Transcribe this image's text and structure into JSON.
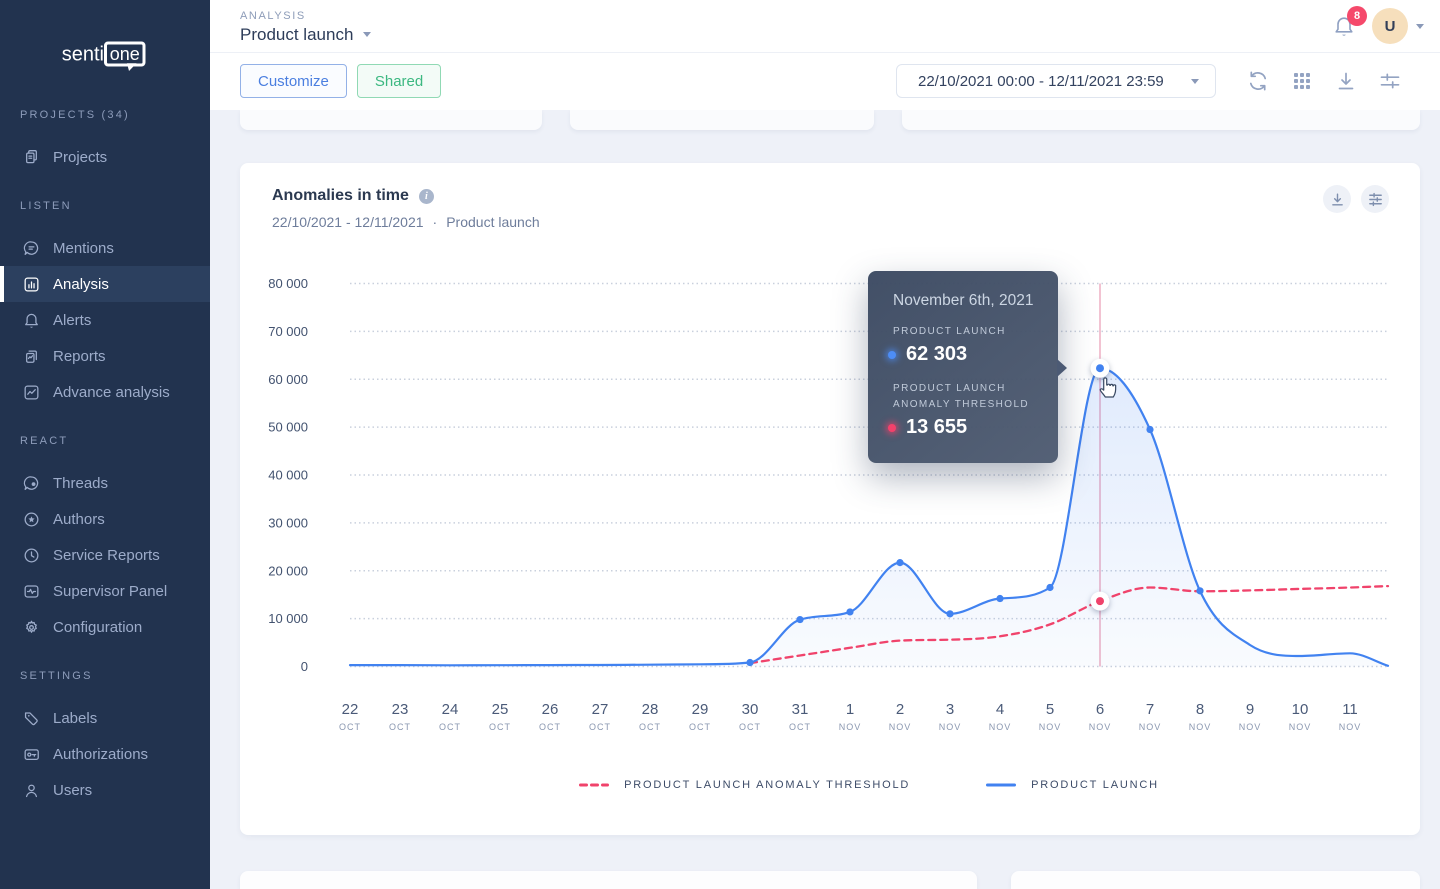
{
  "app": {
    "name": "sentione"
  },
  "sidebar": {
    "logo": {
      "text_plain": "senti",
      "text_boxed": "one"
    },
    "sections": [
      {
        "header": "PROJECTS (34)",
        "items": [
          {
            "icon": "projects",
            "label": "Projects",
            "active": false
          }
        ]
      },
      {
        "header": "LISTEN",
        "items": [
          {
            "icon": "mentions",
            "label": "Mentions",
            "active": false
          },
          {
            "icon": "analysis",
            "label": "Analysis",
            "active": true
          },
          {
            "icon": "alerts",
            "label": "Alerts",
            "active": false
          },
          {
            "icon": "reports",
            "label": "Reports",
            "active": false
          },
          {
            "icon": "advance-analysis",
            "label": "Advance analysis",
            "active": false
          }
        ]
      },
      {
        "header": "REACT",
        "items": [
          {
            "icon": "threads",
            "label": "Threads",
            "active": false
          },
          {
            "icon": "authors",
            "label": "Authors",
            "active": false
          },
          {
            "icon": "service-reports",
            "label": "Service Reports",
            "active": false
          },
          {
            "icon": "supervisor-panel",
            "label": "Supervisor Panel",
            "active": false
          },
          {
            "icon": "configuration",
            "label": "Configuration",
            "active": false
          }
        ]
      },
      {
        "header": "SETTINGS",
        "items": [
          {
            "icon": "labels",
            "label": "Labels",
            "active": false
          },
          {
            "icon": "authorizations",
            "label": "Authorizations",
            "active": false
          },
          {
            "icon": "users",
            "label": "Users",
            "active": false
          }
        ]
      }
    ]
  },
  "header": {
    "breadcrumb": "ANALYSIS",
    "title": "Product launch",
    "notifications_count": "8",
    "avatar_initial": "U"
  },
  "toolbar": {
    "customize_label": "Customize",
    "shared_label": "Shared",
    "date_range": "22/10/2021 00:00 - 12/11/2021 23:59"
  },
  "panel": {
    "title": "Anomalies in time",
    "subtitle_range": "22/10/2021 - 12/11/2021",
    "subtitle_separator": "·",
    "subtitle_project": "Product launch"
  },
  "tooltip": {
    "date": "November 6th, 2021",
    "series1_label": "PRODUCT LAUNCH",
    "series1_value": "62 303",
    "series2_label_line1": "PRODUCT LAUNCH",
    "series2_label_line2": "ANOMALY THRESHOLD",
    "series2_value": "13 655"
  },
  "legend": [
    {
      "label": "PRODUCT LAUNCH ANOMALY THRESHOLD",
      "style": "dashed",
      "color": "#f0436b"
    },
    {
      "label": "PRODUCT LAUNCH",
      "style": "solid",
      "color": "#4182f0"
    }
  ],
  "colors": {
    "sidebar_bg": "#22334f",
    "sidebar_active_bg": "#2c405f",
    "accent_blue": "#4182f0",
    "accent_red": "#f0436b",
    "accent_green": "#3cb881",
    "badge_red": "#f5496b",
    "grid_dot": "#c9d0dd",
    "hover_line": "#f2c3d2",
    "tooltip_bg": "#46556e"
  },
  "chart_data": {
    "type": "line",
    "title": "Anomalies in time",
    "ylim": [
      0,
      80000
    ],
    "y_ticks": [
      "0",
      "10 000",
      "20 000",
      "30 000",
      "40 000",
      "50 000",
      "60 000",
      "70 000",
      "80 000"
    ],
    "x_labels": [
      {
        "day": "22",
        "month": "OCT"
      },
      {
        "day": "23",
        "month": "OCT"
      },
      {
        "day": "24",
        "month": "OCT"
      },
      {
        "day": "25",
        "month": "OCT"
      },
      {
        "day": "26",
        "month": "OCT"
      },
      {
        "day": "27",
        "month": "OCT"
      },
      {
        "day": "28",
        "month": "OCT"
      },
      {
        "day": "29",
        "month": "OCT"
      },
      {
        "day": "30",
        "month": "OCT"
      },
      {
        "day": "31",
        "month": "OCT"
      },
      {
        "day": "1",
        "month": "NOV"
      },
      {
        "day": "2",
        "month": "NOV"
      },
      {
        "day": "3",
        "month": "NOV"
      },
      {
        "day": "4",
        "month": "NOV"
      },
      {
        "day": "5",
        "month": "NOV"
      },
      {
        "day": "6",
        "month": "NOV"
      },
      {
        "day": "7",
        "month": "NOV"
      },
      {
        "day": "8",
        "month": "NOV"
      },
      {
        "day": "9",
        "month": "NOV"
      },
      {
        "day": "10",
        "month": "NOV"
      },
      {
        "day": "11",
        "month": "NOV"
      }
    ],
    "series": [
      {
        "name": "PRODUCT LAUNCH",
        "color": "#4182f0",
        "style": "solid",
        "values": [
          300,
          300,
          260,
          280,
          300,
          320,
          380,
          450,
          830,
          9800,
          11400,
          21700,
          11000,
          14200,
          16500,
          62303,
          49500,
          15800,
          4500,
          2200,
          2750
        ],
        "trailing_value": 150
      },
      {
        "name": "PRODUCT LAUNCH ANOMALY THRESHOLD",
        "color": "#f0436b",
        "style": "dashed",
        "values": [
          null,
          null,
          null,
          null,
          null,
          null,
          null,
          null,
          700,
          2300,
          3900,
          5400,
          5600,
          6300,
          8800,
          13655,
          16500,
          15700,
          15900,
          16200,
          16500
        ],
        "trailing_value": 16800
      }
    ],
    "marker_indices": [
      8,
      9,
      10,
      11,
      12,
      13,
      14,
      16,
      17
    ],
    "highlight_index": 15,
    "legend_position": "bottom",
    "grid": "dotted-horizontal"
  }
}
